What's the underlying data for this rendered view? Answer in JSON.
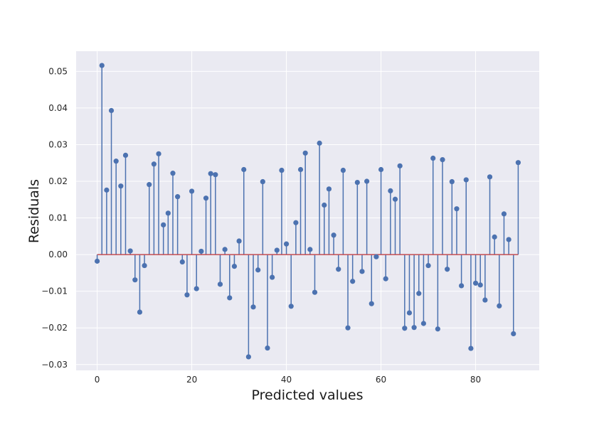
{
  "chart_data": {
    "type": "stem",
    "title": "",
    "xlabel": "Predicted values",
    "ylabel": "Residuals",
    "xlim": [
      -4.45,
      93.45
    ],
    "ylim": [
      -0.0316,
      0.0555
    ],
    "x_ticks": [
      0,
      20,
      40,
      60,
      80
    ],
    "y_ticks": [
      -0.03,
      -0.02,
      -0.01,
      0.0,
      0.01,
      0.02,
      0.03,
      0.04,
      0.05
    ],
    "y_tick_labels": [
      "−0.03",
      "−0.02",
      "−0.01",
      "0.00",
      "0.01",
      "0.02",
      "0.03",
      "0.04",
      "0.05"
    ],
    "grid": true,
    "baseline": 0,
    "colors": {
      "background": "#eaeaf2",
      "grid": "#ffffff",
      "stem": "#4c72b0",
      "baseline": "#c44e52"
    },
    "values": [
      -0.0018,
      0.0516,
      0.0176,
      0.0393,
      0.0255,
      0.0187,
      0.0271,
      0.001,
      -0.0069,
      -0.0157,
      -0.003,
      0.0191,
      0.0247,
      0.0275,
      0.0081,
      0.0113,
      0.0222,
      0.0158,
      -0.002,
      -0.011,
      0.0173,
      -0.0093,
      0.0009,
      0.0154,
      0.0221,
      0.0218,
      -0.0081,
      0.0014,
      -0.0118,
      -0.0032,
      0.0037,
      0.0232,
      -0.0279,
      -0.0143,
      -0.0042,
      0.0199,
      -0.0255,
      -0.0062,
      0.0012,
      0.023,
      0.0029,
      -0.0141,
      0.0087,
      0.0232,
      0.0277,
      0.0014,
      -0.0103,
      0.0304,
      0.0135,
      0.0179,
      0.0053,
      -0.004,
      0.023,
      -0.02,
      -0.0073,
      0.0197,
      -0.0046,
      0.02,
      -0.0134,
      -0.0006,
      0.0232,
      -0.0066,
      0.0174,
      0.0151,
      0.0242,
      -0.0201,
      -0.0159,
      -0.0199,
      -0.0106,
      -0.0188,
      -0.003,
      0.0263,
      -0.0203,
      0.0259,
      -0.004,
      0.0199,
      0.0125,
      -0.0085,
      0.0204,
      -0.0256,
      -0.0078,
      -0.0083,
      -0.0124,
      0.0212,
      0.0048,
      -0.014,
      0.0111,
      0.0041,
      -0.0216,
      0.0251
    ]
  }
}
